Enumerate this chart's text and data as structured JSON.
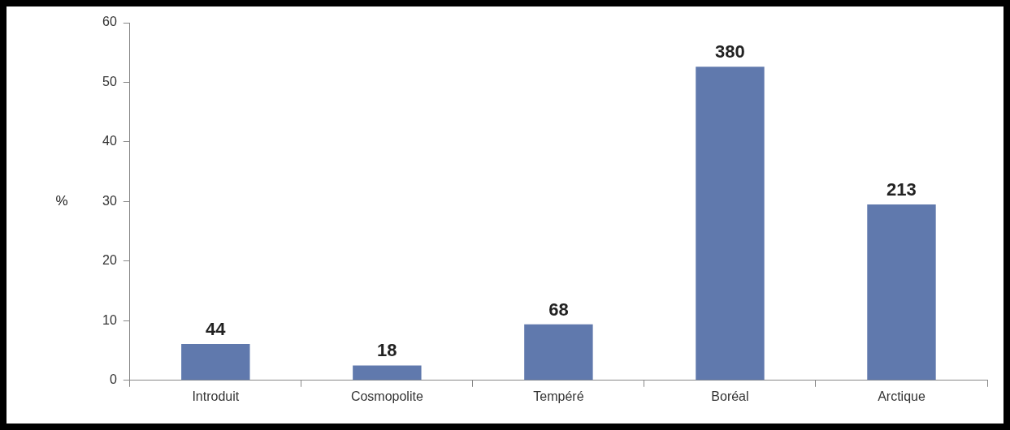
{
  "chart_data": {
    "type": "bar",
    "ylabel": "%",
    "categories": [
      "Introduit",
      "Cosmopolite",
      "Tempéré",
      "Boréal",
      "Arctique"
    ],
    "values": [
      6.1,
      2.5,
      9.4,
      52.6,
      29.5
    ],
    "annotations": [
      {
        "text": "44",
        "x": "Introduit",
        "y": 6.1
      },
      {
        "text": "18",
        "x": "Cosmopolite",
        "y": 2.5
      },
      {
        "text": "68",
        "x": "Tempéré",
        "y": 9.4
      },
      {
        "text": "380",
        "x": "Boréal",
        "y": 52.6
      },
      {
        "text": "213",
        "x": "Arctique",
        "y": 29.5
      }
    ],
    "color": "#6079ad",
    "ylim": [
      0,
      60
    ],
    "yticks": [
      0,
      10,
      20,
      30,
      40,
      50,
      60
    ],
    "grid": false,
    "legend": false
  }
}
